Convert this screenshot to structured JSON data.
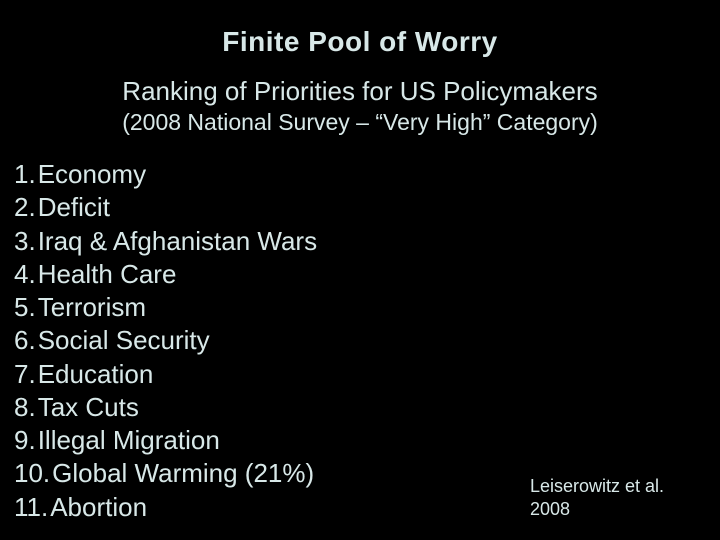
{
  "colors": {
    "background": "#000000",
    "text": "#d8e8e8"
  },
  "typography": {
    "family": "Arial",
    "title_size_pt": 28,
    "title_weight": "bold",
    "subtitle_size_pt": 26,
    "subnote_size_pt": 23,
    "list_size_pt": 26,
    "citation_size_pt": 18
  },
  "title": "Finite Pool of Worry",
  "subtitle": "Ranking of Priorities for US Policymakers",
  "subnote": "(2008 National Survey – “Very High” Category)",
  "list": {
    "type": "ordered-list",
    "items": [
      {
        "n": "1.",
        "label": "Economy"
      },
      {
        "n": "2.",
        "label": "Deficit"
      },
      {
        "n": "3.",
        "label": "Iraq & Afghanistan Wars"
      },
      {
        "n": "4.",
        "label": "Health Care"
      },
      {
        "n": "5.",
        "label": "Terrorism"
      },
      {
        "n": "6.",
        "label": "Social Security"
      },
      {
        "n": "7.",
        "label": "Education"
      },
      {
        "n": "8.",
        "label": "Tax Cuts"
      },
      {
        "n": "9.",
        "label": "Illegal Migration"
      },
      {
        "n": "10.",
        "label": "Global Warming (21%)"
      },
      {
        "n": "11.",
        "label": "Abortion"
      }
    ]
  },
  "citation": {
    "line1": "Leiserowitz et al.",
    "line2": "2008"
  }
}
